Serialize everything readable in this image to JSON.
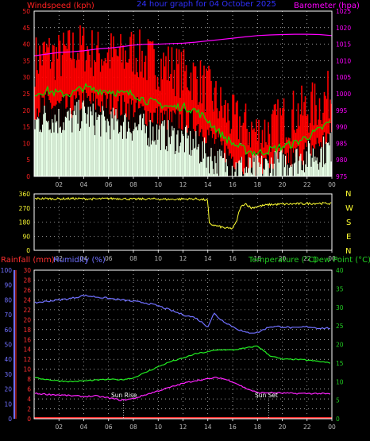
{
  "colors": {
    "wind_axis": "#ff2020",
    "gust": "#ff0000",
    "avg_wind": "#00dd00",
    "light_wind": "#e6ffe6",
    "baro": "#ff00ff",
    "title": "#3030ff",
    "dir": "#ffff33",
    "rain_axis": "#ff3030",
    "humidity": "#7070ff",
    "temp_axis": "#22cc22",
    "temp": "#22ee22",
    "dew": "#ff22ff",
    "grid": "#ffffff",
    "x_axis": "#bbbbbb"
  },
  "header": {
    "wind_label": "Windspeed (kph)",
    "title": "24 hour graph for  04 October 2025",
    "baro_label": "Barometer (hpa)"
  },
  "panel3_header": {
    "rain_label": "Rainfall (mm)",
    "humidity_label": "Humidity (%)",
    "temp_label": "Temperature (°C)",
    "dew_label": "Dew Point (°C)"
  },
  "compass": [
    "N",
    "W",
    "S",
    "E",
    "N"
  ],
  "annotations": {
    "sun_rise": "Sun Rise",
    "sun_set": "Sun Set"
  },
  "chart_data": [
    {
      "type": "line",
      "title": "24 hour graph for  04 October 2025",
      "x_ticks": [
        "02",
        "04",
        "06",
        "08",
        "10",
        "12",
        "14",
        "16",
        "18",
        "20",
        "22",
        "00"
      ],
      "left_axis": {
        "label": "Windspeed (kph)",
        "ylim": [
          0,
          50
        ],
        "ticks": [
          "0",
          "5",
          "10",
          "15",
          "20",
          "25",
          "30",
          "35",
          "40",
          "45",
          "50"
        ]
      },
      "right_axis": {
        "label": "Barometer (hpa)",
        "ylim": [
          975,
          1025
        ],
        "ticks": [
          "975",
          "980",
          "985",
          "990",
          "995",
          "1000",
          "1005",
          "1010",
          "1015",
          "1020",
          "1025"
        ]
      },
      "hours": [
        0,
        1,
        2,
        3,
        4,
        5,
        6,
        7,
        8,
        9,
        10,
        11,
        12,
        13,
        14,
        15,
        16,
        17,
        18,
        19,
        20,
        21,
        22,
        23,
        24
      ],
      "series": [
        {
          "axis": "left",
          "style": "bars",
          "values": [
            35,
            37,
            36,
            38,
            39,
            37,
            37,
            36,
            38,
            35,
            34,
            33,
            31,
            30,
            26,
            21,
            17,
            15,
            13,
            14,
            17,
            19,
            20,
            22,
            25
          ]
        },
        {
          "axis": "left",
          "style": "line",
          "values": [
            25,
            26,
            25,
            25,
            27,
            26,
            26,
            25,
            25,
            23,
            22,
            21,
            21,
            20,
            17,
            13,
            10,
            8,
            7,
            8,
            9,
            10,
            12,
            14,
            17
          ]
        },
        {
          "axis": "left",
          "style": "bars",
          "values": [
            16,
            18,
            17,
            17,
            19,
            17,
            16,
            16,
            15,
            14,
            13,
            12,
            11,
            9,
            6,
            4,
            3,
            2,
            2,
            3,
            4,
            5,
            6,
            7,
            9
          ]
        },
        {
          "axis": "right",
          "style": "line",
          "values": [
            1011.5,
            1012,
            1012.5,
            1012.7,
            1013,
            1013.5,
            1013.8,
            1014.2,
            1014.7,
            1015,
            1015,
            1015.2,
            1015.3,
            1015.6,
            1016,
            1016.4,
            1016.8,
            1017.2,
            1017.6,
            1017.8,
            1017.9,
            1018,
            1018,
            1017.9,
            1017.6
          ]
        }
      ]
    },
    {
      "type": "line",
      "x_ticks": [
        "02",
        "04",
        "06",
        "08",
        "10",
        "12",
        "14",
        "16",
        "18",
        "20",
        "22",
        "00"
      ],
      "ylim": [
        0,
        360
      ],
      "y_ticks": [
        "0",
        "90",
        "180",
        "270",
        "360"
      ],
      "series": [
        {
          "name": "Wind direction",
          "x": [
            0,
            1,
            2,
            3,
            4,
            5,
            6,
            7,
            8,
            9,
            10,
            11,
            12,
            13,
            14,
            14.1,
            14.5,
            15,
            15.5,
            16,
            16.3,
            16.6,
            17,
            17.5,
            18,
            19,
            20,
            21,
            22,
            23,
            24
          ],
          "values": [
            330,
            330,
            328,
            330,
            329,
            327,
            330,
            330,
            326,
            328,
            327,
            325,
            327,
            328,
            320,
            170,
            160,
            150,
            140,
            140,
            180,
            270,
            300,
            270,
            280,
            292,
            294,
            296,
            298,
            300,
            298
          ]
        }
      ]
    },
    {
      "type": "line",
      "x_ticks": [
        "02",
        "04",
        "06",
        "08",
        "10",
        "12",
        "14",
        "16",
        "18",
        "20",
        "22",
        "00"
      ],
      "axes": {
        "humidity": {
          "ylim": [
            0,
            100
          ],
          "ticks": [
            "0",
            "10",
            "20",
            "30",
            "40",
            "50",
            "60",
            "70",
            "80",
            "90",
            "100"
          ]
        },
        "rainfall": {
          "ylim": [
            0,
            30
          ],
          "ticks": [
            "0",
            "2",
            "4",
            "6",
            "8",
            "10",
            "12",
            "14",
            "16",
            "18",
            "20",
            "22",
            "24",
            "26",
            "28",
            "30"
          ]
        },
        "temperature": {
          "ylim": [
            0,
            40
          ],
          "ticks": [
            "0",
            "5",
            "10",
            "15",
            "20",
            "25",
            "30",
            "35",
            "40"
          ]
        }
      },
      "hours": [
        0,
        1,
        2,
        3,
        4,
        5,
        6,
        7,
        8,
        9,
        10,
        11,
        12,
        13,
        14,
        14.5,
        15,
        16,
        17,
        18,
        19,
        20,
        21,
        22,
        23,
        24
      ],
      "series": [
        {
          "name": "Humidity (%)",
          "axis": "humidity",
          "values": [
            78,
            79,
            80,
            81,
            83,
            82,
            81,
            80,
            79,
            78,
            76,
            73,
            70,
            68,
            62,
            71,
            67,
            62,
            58,
            58,
            62,
            62,
            61,
            62,
            61,
            61
          ]
        },
        {
          "name": "Rainfall (mm)",
          "axis": "rainfall",
          "values": [
            0,
            0,
            0,
            0,
            0,
            0,
            0,
            0,
            0,
            0,
            0,
            0,
            0,
            0,
            0,
            0,
            0,
            0,
            0,
            0,
            0,
            0,
            0,
            0,
            0,
            0
          ]
        },
        {
          "name": "Temperature (°C)",
          "axis": "temperature",
          "values": [
            11,
            10.6,
            10.2,
            10,
            10.2,
            10.4,
            10.6,
            10.5,
            11,
            12.5,
            14,
            15.4,
            16.3,
            17.5,
            18,
            18.4,
            18.6,
            18.5,
            19,
            19.6,
            17,
            16,
            16,
            15.8,
            15.4,
            15
          ]
        },
        {
          "name": "Dew Point (°C)",
          "axis": "temperature",
          "values": [
            6.8,
            6.6,
            6.4,
            6.2,
            6,
            6.1,
            5.6,
            5,
            5.4,
            6.5,
            7.5,
            8.5,
            9.5,
            10.3,
            10.7,
            11,
            11,
            10,
            8.3,
            7,
            7,
            6.9,
            6.8,
            6.8,
            6.8,
            6.6
          ]
        }
      ]
    }
  ]
}
